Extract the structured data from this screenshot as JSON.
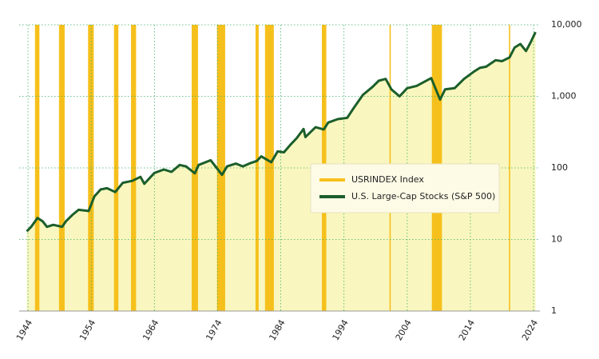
{
  "chart_data": {
    "type": "line",
    "ylog": true,
    "grid": true,
    "xlim": [
      1942.6,
      2025
    ],
    "xticks": [
      1944,
      1954,
      1964,
      1974,
      1984,
      1994,
      2004,
      2014,
      2024
    ],
    "ylim": [
      1,
      10000
    ],
    "yticks": [
      1,
      10,
      100,
      {
        "value": 1000,
        "label": "1,000"
      },
      {
        "value": 10000,
        "label": "10,000"
      }
    ],
    "area_color": "#f9f7bf",
    "series": [
      {
        "name": "USRINDEX Index",
        "color": "#f6c01c",
        "type": "band",
        "ranges": [
          [
            1945.1,
            1945.8
          ],
          [
            1948.9,
            1949.8
          ],
          [
            1953.5,
            1954.4
          ],
          [
            1957.6,
            1958.3
          ],
          [
            1960.3,
            1961.1
          ],
          [
            1969.9,
            1970.9
          ],
          [
            1973.9,
            1975.2
          ],
          [
            1980.0,
            1980.5
          ],
          [
            1981.5,
            1982.9
          ],
          [
            1990.5,
            1991.2
          ],
          [
            2001.2,
            2001.4
          ],
          [
            2007.9,
            2009.5
          ],
          [
            2020.1,
            2020.3
          ]
        ]
      },
      {
        "name": "U.S. Large-Cap Stocks (S&P 500)",
        "color": "#1b5e2b",
        "type": "line",
        "x": [
          1943.8,
          1944.5,
          1945.5,
          1946.3,
          1947,
          1948,
          1949.4,
          1950,
          1951,
          1952,
          1953.6,
          1954.5,
          1955.5,
          1956.5,
          1957.8,
          1959,
          1960.5,
          1961.8,
          1962.4,
          1964,
          1965.5,
          1966.7,
          1968,
          1969,
          1970.4,
          1971,
          1972.9,
          1974.7,
          1975.5,
          1976.9,
          1978,
          1979,
          1980.2,
          1980.9,
          1982.5,
          1983.5,
          1984.5,
          1985.5,
          1986.5,
          1987.6,
          1987.9,
          1989.5,
          1990.8,
          1991.5,
          1993,
          1994.5,
          1995.5,
          1997,
          1998.5,
          1999.5,
          2000.6,
          2001.5,
          2002.8,
          2004,
          2005.5,
          2007.8,
          2009.2,
          2010,
          2011.5,
          2013,
          2014.5,
          2015.5,
          2016.5,
          2018,
          2019,
          2020.2,
          2021,
          2021.9,
          2022.8,
          2023.5,
          2024.3
        ],
        "values": [
          13,
          15,
          20,
          18,
          15,
          16,
          15,
          18,
          22,
          26,
          25,
          40,
          50,
          52,
          46,
          62,
          66,
          75,
          60,
          85,
          95,
          88,
          110,
          105,
          84,
          110,
          128,
          80,
          105,
          115,
          105,
          115,
          125,
          145,
          120,
          170,
          165,
          210,
          260,
          350,
          270,
          370,
          345,
          430,
          480,
          500,
          680,
          1050,
          1350,
          1650,
          1750,
          1250,
          1000,
          1300,
          1400,
          1800,
          900,
          1250,
          1300,
          1750,
          2200,
          2500,
          2600,
          3200,
          3100,
          3500,
          4800,
          5400,
          4300,
          5600,
          7900
        ]
      }
    ]
  }
}
